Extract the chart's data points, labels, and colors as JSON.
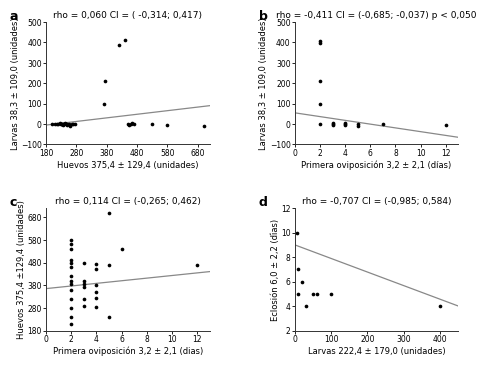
{
  "panel_a": {
    "label": "a",
    "title": "rho = 0,060 CI = ( -0,314; 0,417)",
    "xlabel": "Huevos 375,4 ± 129,4 (unidades)",
    "ylabel": "Larvas 38,3 ± 109,0 (unidades)",
    "xlim": [
      180,
      720
    ],
    "ylim": [
      -100,
      500
    ],
    "xticks": [
      180,
      280,
      380,
      480,
      580,
      680
    ],
    "yticks": [
      -100,
      0,
      100,
      200,
      300,
      400,
      500
    ],
    "points_x": [
      200,
      210,
      215,
      220,
      225,
      228,
      230,
      232,
      235,
      237,
      240,
      242,
      245,
      248,
      250,
      255,
      260,
      265,
      270,
      275,
      370,
      375,
      420,
      440,
      450,
      455,
      460,
      465,
      470,
      530,
      580,
      700
    ],
    "points_y": [
      0,
      0,
      0,
      0,
      5,
      0,
      0,
      0,
      -5,
      0,
      0,
      5,
      0,
      -5,
      0,
      0,
      -10,
      0,
      0,
      0,
      100,
      210,
      385,
      410,
      0,
      -5,
      0,
      5,
      0,
      0,
      -5,
      -10
    ],
    "line_x": [
      180,
      720
    ],
    "line_y": [
      -5,
      90
    ]
  },
  "panel_b": {
    "label": "b",
    "title": "rho = -0,411 CI = (-0,685; -0,037) p < 0,050",
    "xlabel": "Primera oviposición 3,2 ± 2,1 (días)",
    "ylabel": "Larvas 38,3 ± 109,0 (unidades)",
    "xlim": [
      0,
      13
    ],
    "ylim": [
      -100,
      500
    ],
    "xticks": [
      0,
      2,
      4,
      6,
      8,
      10,
      12
    ],
    "yticks": [
      -100,
      0,
      100,
      200,
      300,
      400,
      500
    ],
    "points_x": [
      2,
      2,
      2,
      2,
      2,
      3,
      3,
      3,
      4,
      4,
      4,
      5,
      5,
      7,
      12
    ],
    "points_y": [
      405,
      395,
      210,
      100,
      0,
      0,
      -5,
      5,
      0,
      -5,
      5,
      0,
      -10,
      0,
      -5
    ],
    "line_x": [
      0,
      13
    ],
    "line_y": [
      55,
      -65
    ]
  },
  "panel_c": {
    "label": "c",
    "title": "rho = 0,114 CI = (-0,265; 0,462)",
    "xlabel": "Primera oviposición 3,2 ± 2,1 (dias)",
    "ylabel": "Huevos 375,4 ±129,4 (unidades)",
    "xlim": [
      0,
      13
    ],
    "ylim": [
      180,
      720
    ],
    "xticks": [
      0,
      2,
      4,
      6,
      8,
      10,
      12
    ],
    "yticks": [
      180,
      280,
      380,
      480,
      580,
      680
    ],
    "points_x": [
      2,
      2,
      2,
      2,
      2,
      2,
      2,
      2,
      2,
      2,
      2,
      2,
      2,
      2,
      3,
      3,
      3,
      3,
      3,
      3,
      4,
      4,
      4,
      4,
      4,
      4,
      5,
      5,
      5,
      6,
      12
    ],
    "points_y": [
      580,
      560,
      540,
      490,
      480,
      460,
      420,
      400,
      385,
      360,
      320,
      280,
      240,
      210,
      480,
      400,
      385,
      370,
      320,
      290,
      475,
      450,
      380,
      350,
      325,
      285,
      700,
      470,
      240,
      540,
      470
    ],
    "line_x": [
      0,
      13
    ],
    "line_y": [
      365,
      440
    ]
  },
  "panel_d": {
    "label": "d",
    "title": "rho = -0,707 CI = (-0,985; 0,584)",
    "xlabel": "Larvas 222,4 ± 179,0 (unidades)",
    "ylabel": "Eclosión 6,0 ± 2,2 (días)",
    "xlim": [
      0,
      450
    ],
    "ylim": [
      2,
      12
    ],
    "xticks": [
      0,
      100,
      200,
      300,
      400
    ],
    "yticks": [
      2,
      4,
      6,
      8,
      10,
      12
    ],
    "points_x": [
      5,
      10,
      10,
      20,
      30,
      50,
      60,
      100,
      400
    ],
    "points_y": [
      10,
      7,
      5,
      6,
      4,
      5,
      5,
      5,
      4
    ],
    "line_x": [
      0,
      450
    ],
    "line_y": [
      9,
      4
    ]
  },
  "background_color": "#ffffff",
  "line_color": "#888888",
  "point_color": "#000000",
  "title_fontsize": 6.5,
  "label_fontsize": 6.0,
  "tick_fontsize": 5.5,
  "panel_label_fontsize": 9
}
